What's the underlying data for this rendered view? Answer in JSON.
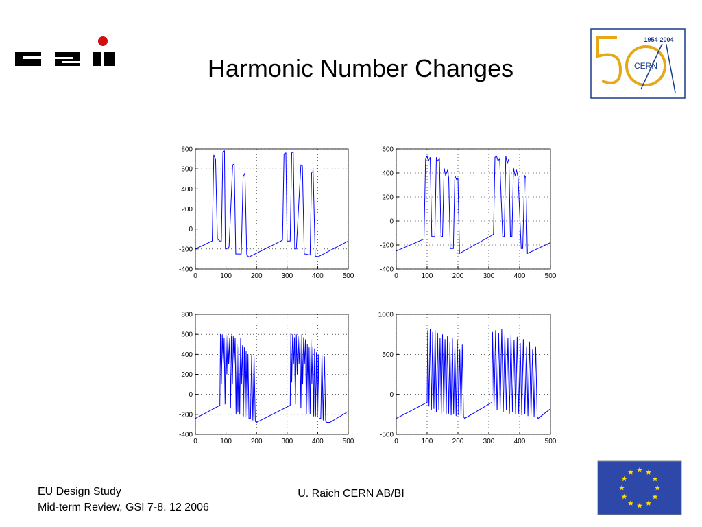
{
  "header": {
    "title": "Harmonic Number Changes",
    "cern_logo": {
      "years": "1954-2004",
      "name": "CERN"
    }
  },
  "footer": {
    "left": [
      "EU Design Study",
      "Mid-term Review, GSI 7-8. 12 2006"
    ],
    "center": "U. Raich CERN AB/BI"
  },
  "chart_data": [
    {
      "type": "line",
      "color": "#0000ff",
      "grid": true,
      "xlim": [
        0,
        500
      ],
      "xticks": [
        0,
        100,
        200,
        300,
        400,
        500
      ],
      "ylim": [
        -400,
        800
      ],
      "yticks": [
        -400,
        -200,
        0,
        200,
        400,
        600,
        800
      ],
      "x": [
        0,
        55,
        60,
        66,
        72,
        80,
        85,
        90,
        95,
        98,
        102,
        110,
        122,
        127,
        132,
        150,
        156,
        162,
        168,
        175,
        280,
        285,
        290,
        296,
        300,
        310,
        315,
        320,
        325,
        330,
        345,
        350,
        356,
        360,
        375,
        380,
        385,
        392,
        400,
        500
      ],
      "values": [
        -200,
        -120,
        740,
        700,
        -100,
        -120,
        -120,
        770,
        780,
        -200,
        -200,
        -180,
        640,
        650,
        -250,
        -250,
        520,
        560,
        -260,
        -280,
        -120,
        -110,
        750,
        760,
        -120,
        -120,
        760,
        770,
        -200,
        -200,
        640,
        630,
        -250,
        -250,
        -260,
        560,
        580,
        -270,
        -280,
        -120
      ]
    },
    {
      "type": "line",
      "color": "#0000ff",
      "grid": true,
      "xlim": [
        0,
        500
      ],
      "xticks": [
        0,
        100,
        200,
        300,
        400,
        500
      ],
      "ylim": [
        -400,
        600
      ],
      "yticks": [
        -400,
        -200,
        0,
        200,
        400,
        600
      ],
      "x": [
        0,
        90,
        95,
        100,
        104,
        110,
        115,
        125,
        130,
        134,
        140,
        145,
        150,
        155,
        160,
        166,
        170,
        175,
        185,
        190,
        196,
        200,
        205,
        310,
        315,
        320,
        325,
        330,
        335,
        345,
        350,
        355,
        360,
        365,
        370,
        375,
        380,
        385,
        390,
        395,
        405,
        410,
        416,
        420,
        425,
        500
      ],
      "values": [
        -250,
        -150,
        520,
        540,
        500,
        530,
        -130,
        -130,
        530,
        500,
        520,
        -130,
        -130,
        440,
        380,
        420,
        360,
        -230,
        -230,
        380,
        340,
        360,
        -270,
        -120,
        -110,
        530,
        540,
        500,
        520,
        -130,
        -130,
        540,
        480,
        520,
        -130,
        -130,
        440,
        380,
        420,
        360,
        -230,
        -230,
        380,
        360,
        -270,
        -180
      ]
    },
    {
      "type": "line",
      "color": "#0000ff",
      "grid": true,
      "xlim": [
        0,
        500
      ],
      "xticks": [
        0,
        100,
        200,
        300,
        400,
        500
      ],
      "ylim": [
        -400,
        800
      ],
      "yticks": [
        -400,
        -200,
        0,
        200,
        400,
        600,
        800
      ],
      "x": [
        0,
        80,
        82,
        85,
        88,
        91,
        94,
        97,
        100,
        103,
        106,
        109,
        112,
        115,
        118,
        121,
        124,
        127,
        130,
        133,
        136,
        139,
        142,
        145,
        148,
        151,
        154,
        157,
        160,
        163,
        166,
        169,
        172,
        175,
        180,
        184,
        188,
        192,
        196,
        200,
        310,
        312,
        315,
        318,
        321,
        324,
        327,
        330,
        333,
        336,
        339,
        342,
        345,
        348,
        351,
        354,
        357,
        360,
        363,
        366,
        369,
        372,
        375,
        378,
        381,
        384,
        387,
        390,
        393,
        396,
        399,
        402,
        405,
        410,
        414,
        418,
        422,
        426,
        430,
        440,
        500
      ],
      "values": [
        -240,
        -110,
        600,
        100,
        600,
        300,
        560,
        -100,
        600,
        200,
        590,
        300,
        560,
        -140,
        590,
        100,
        580,
        300,
        560,
        -200,
        500,
        -180,
        470,
        -200,
        560,
        100,
        490,
        -220,
        470,
        -220,
        430,
        -230,
        400,
        -240,
        -240,
        400,
        -260,
        380,
        -270,
        -280,
        -110,
        610,
        120,
        600,
        300,
        570,
        -100,
        600,
        200,
        580,
        300,
        560,
        -140,
        600,
        100,
        570,
        300,
        550,
        -200,
        500,
        -180,
        470,
        -200,
        550,
        100,
        480,
        -220,
        460,
        -220,
        420,
        -230,
        400,
        -240,
        -240,
        400,
        -260,
        380,
        -270,
        -280,
        -280,
        -170
      ]
    },
    {
      "type": "line",
      "color": "#0000ff",
      "grid": true,
      "xlim": [
        0,
        500
      ],
      "xticks": [
        0,
        100,
        200,
        300,
        400,
        500
      ],
      "ylim": [
        -500,
        1000
      ],
      "yticks": [
        -500,
        0,
        500,
        1000
      ],
      "x": [
        0,
        100,
        102,
        106,
        110,
        114,
        118,
        122,
        126,
        130,
        134,
        138,
        142,
        146,
        150,
        154,
        158,
        162,
        166,
        170,
        174,
        178,
        182,
        186,
        190,
        194,
        198,
        202,
        206,
        210,
        214,
        218,
        222,
        310,
        312,
        317,
        322,
        327,
        332,
        337,
        342,
        347,
        352,
        357,
        362,
        367,
        372,
        377,
        382,
        387,
        392,
        397,
        402,
        407,
        412,
        417,
        422,
        427,
        432,
        437,
        442,
        447,
        452,
        457,
        460,
        500
      ],
      "values": [
        -300,
        -100,
        800,
        -150,
        820,
        -200,
        780,
        -180,
        800,
        -220,
        760,
        -200,
        700,
        -240,
        750,
        -220,
        690,
        -250,
        730,
        -240,
        650,
        -260,
        700,
        -250,
        600,
        -270,
        680,
        -260,
        560,
        -280,
        620,
        -280,
        -300,
        -100,
        780,
        -150,
        800,
        -200,
        760,
        -180,
        820,
        -220,
        740,
        -200,
        700,
        -240,
        750,
        -220,
        680,
        -250,
        720,
        -240,
        640,
        -260,
        690,
        -250,
        600,
        -270,
        660,
        -260,
        560,
        -280,
        600,
        -280,
        -300,
        -180
      ]
    }
  ]
}
